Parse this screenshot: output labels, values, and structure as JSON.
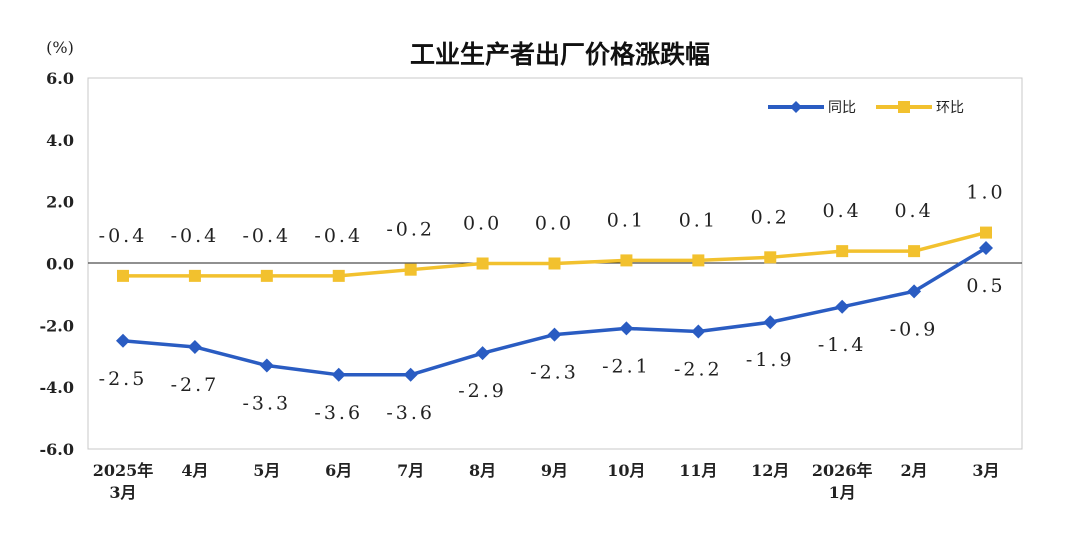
{
  "chart_data": {
    "type": "line",
    "title": "工业生产者出厂价格涨跌幅",
    "unit": "(%)",
    "ylim": [
      -6.0,
      6.0
    ],
    "yticks": [
      "6.0",
      "4.0",
      "2.0",
      "0.0",
      "-2.0",
      "-4.0",
      "-6.0"
    ],
    "ytick_values": [
      6,
      4,
      2,
      0,
      -2,
      -4,
      -6
    ],
    "categories": [
      [
        "2025年",
        "3月"
      ],
      [
        "4月"
      ],
      [
        "5月"
      ],
      [
        "6月"
      ],
      [
        "7月"
      ],
      [
        "8月"
      ],
      [
        "9月"
      ],
      [
        "10月"
      ],
      [
        "11月"
      ],
      [
        "12月"
      ],
      [
        "2026年",
        "1月"
      ],
      [
        "2月"
      ],
      [
        "3月"
      ]
    ],
    "series": [
      {
        "name": "同比",
        "color": "#2a5cc2",
        "marker": "diamond",
        "values": [
          -2.5,
          -2.7,
          -3.3,
          -3.6,
          -3.6,
          -2.9,
          -2.3,
          -2.1,
          -2.2,
          -1.9,
          -1.4,
          -0.9,
          0.5
        ],
        "labels": [
          "-2.5",
          "-2.7",
          "-3.3",
          "-3.6",
          "-3.6",
          "-2.9",
          "-2.3",
          "-2.1",
          "-2.2",
          "-1.9",
          "-1.4",
          "-0.9",
          "0.5"
        ],
        "label_position": "below"
      },
      {
        "name": "环比",
        "color": "#f2c12e",
        "marker": "square",
        "values": [
          -0.4,
          -0.4,
          -0.4,
          -0.4,
          -0.2,
          0.0,
          0.0,
          0.1,
          0.1,
          0.2,
          0.4,
          0.4,
          1.0
        ],
        "labels": [
          "-0.4",
          "-0.4",
          "-0.4",
          "-0.4",
          "-0.2",
          "0.0",
          "0.0",
          "0.1",
          "0.1",
          "0.2",
          "0.4",
          "0.4",
          "1.0"
        ],
        "label_position": "above"
      }
    ],
    "legend_position": "top-right",
    "grid": false
  }
}
